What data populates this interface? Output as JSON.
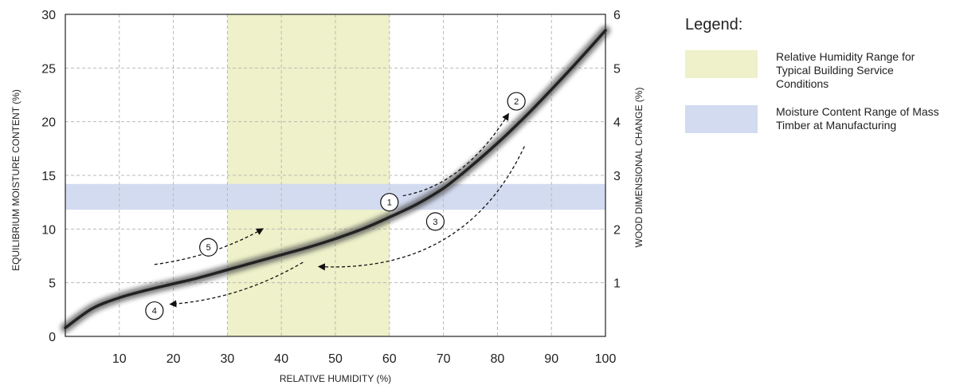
{
  "legend": {
    "title": "Legend:",
    "items": [
      {
        "label": "Relative Humidity Range for Typical Building Service Conditions",
        "color": "#eef1c9"
      },
      {
        "label": "Moisture Content Range of Mass Timber at Manufacturing",
        "color": "#d3dbf0"
      }
    ]
  },
  "chart_data": {
    "type": "line",
    "title": "",
    "xlabel": "RELATIVE HUMIDITY (%)",
    "ylabel": "EQUILIBRIUM MOISTURE CONTENT (%)",
    "y2label": "WOOD DIMENSIONAL CHANGE (%)",
    "xlim": [
      0,
      100
    ],
    "ylim": [
      0,
      30
    ],
    "y2lim": [
      0,
      6
    ],
    "xticks": [
      10,
      20,
      30,
      40,
      50,
      60,
      70,
      80,
      90,
      100
    ],
    "yticks": [
      0,
      5,
      10,
      15,
      20,
      25,
      30
    ],
    "y2ticks": [
      1,
      2,
      3,
      4,
      5,
      6
    ],
    "grid": true,
    "series": [
      {
        "x": [
          0,
          5,
          10,
          15,
          20,
          25,
          30,
          35,
          40,
          45,
          50,
          55,
          60,
          65,
          70,
          75,
          80,
          85,
          90,
          95,
          100
        ],
        "y": [
          0.8,
          2.6,
          3.6,
          4.3,
          4.9,
          5.5,
          6.2,
          6.9,
          7.6,
          8.3,
          9.1,
          10.0,
          11.1,
          12.3,
          13.8,
          15.8,
          18.0,
          20.4,
          23.0,
          25.7,
          28.5
        ],
        "color": "#222222"
      }
    ],
    "bands": [
      {
        "axis": "x",
        "from": 30,
        "to": 60,
        "color": "#eef1c9"
      },
      {
        "axis": "y",
        "from": 11.8,
        "to": 14.2,
        "color": "#d3dbf0"
      }
    ],
    "annotations": [
      {
        "label": "1",
        "x": 60,
        "y": 12.5
      },
      {
        "label": "2",
        "x": 83.5,
        "y": 21.9
      },
      {
        "label": "3",
        "x": 68.5,
        "y": 10.7
      },
      {
        "label": "4",
        "x": 16.5,
        "y": 2.4
      },
      {
        "label": "5",
        "x": 26.5,
        "y": 8.3
      }
    ],
    "arrows": [
      {
        "from": [
          62.5,
          13.1
        ],
        "to": [
          82,
          20.7
        ],
        "via": [
          73,
          15.5
        ]
      },
      {
        "from": [
          85,
          17.7
        ],
        "to": [
          47,
          6.5
        ],
        "via": [
          70,
          9.0
        ]
      },
      {
        "from": [
          44,
          6.9
        ],
        "to": [
          19.5,
          3.0
        ],
        "via": [
          32,
          4.2
        ]
      },
      {
        "from": [
          16.5,
          6.7
        ],
        "to": [
          36.5,
          10.0
        ],
        "via": [
          27,
          7.9
        ]
      }
    ]
  }
}
